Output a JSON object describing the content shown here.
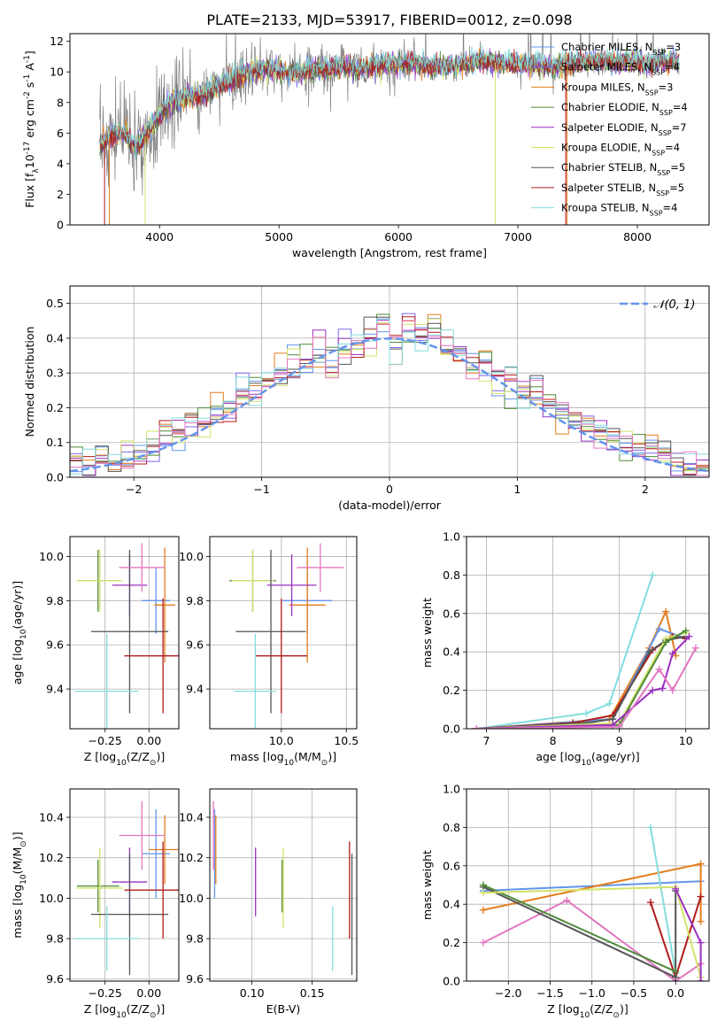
{
  "figure": {
    "title": "PLATE=2133, MJD=53917, FIBERID=0012, z=0.098"
  },
  "colors": {
    "Chabrier MILES": "#6495ed",
    "Salpeter MILES": "#7b68ee",
    "Kroupa MILES": "#e37c1b",
    "Chabrier ELODIE": "#4f8a3a",
    "Salpeter ELODIE": "#9b30c0",
    "Kroupa ELODIE": "#d4e36a",
    "Chabrier STELIB": "#555555",
    "Salpeter STELIB": "#b01b1b",
    "Kroupa STELIB": "#84dcdc",
    "pink": "#e377c2",
    "data": "#808080"
  },
  "chart_data": [
    {
      "type": "line",
      "xlabel": "wavelength [Angstrom, rest frame]",
      "ylabel": "Flux [f$_\\lambda$10$^{-17}$ erg cm$^{-2}$ s$^{-1}$ A$^{-1}$]",
      "xlim": [
        3250,
        8600
      ],
      "ylim": [
        0,
        12.5
      ],
      "xticks": [
        "4000",
        "5000",
        "6000",
        "7000",
        "8000"
      ],
      "yticks": [
        "0",
        "2",
        "4",
        "6",
        "8",
        "10",
        "12"
      ],
      "legend": "top-right",
      "series": [
        {
          "name": "Chabrier MILES, N_SSP=3"
        },
        {
          "name": "Salpeter MILES, N_SSP=4"
        },
        {
          "name": "Kroupa MILES, N_SSP=3"
        },
        {
          "name": "Chabrier ELODIE, N_SSP=4"
        },
        {
          "name": "Salpeter ELODIE, N_SSP=7"
        },
        {
          "name": "Kroupa ELODIE, N_SSP=4"
        },
        {
          "name": "Chabrier STELIB, N_SSP=5"
        },
        {
          "name": "Salpeter STELIB, N_SSP=5"
        },
        {
          "name": "Kroupa STELIB, N_SSP=4"
        }
      ],
      "continuum": {
        "x": [
          3500,
          3600,
          3700,
          3800,
          3900,
          4000,
          4100,
          4200,
          4300,
          4500,
          4700,
          4900,
          5100,
          5300,
          5500,
          5700,
          5900,
          6100,
          6300,
          6500,
          6700,
          6900,
          7100,
          7300,
          7500,
          7700,
          7900,
          8100,
          8300
        ],
        "y": [
          5.2,
          5.8,
          6.0,
          5.0,
          6.0,
          7.2,
          8.0,
          8.3,
          8.4,
          9.0,
          9.8,
          10.2,
          9.9,
          10.1,
          10.3,
          10.2,
          10.5,
          10.5,
          10.3,
          10.4,
          10.7,
          10.5,
          10.5,
          10.3,
          10.6,
          10.6,
          10.7,
          10.5,
          10.7
        ]
      }
    },
    {
      "type": "bar",
      "xlabel": "(data-model)/error",
      "ylabel": "Normed distribution",
      "xlim": [
        -2.5,
        2.5
      ],
      "ylim": [
        0,
        0.55
      ],
      "xticks": [
        "−2",
        "−1",
        "0",
        "1",
        "2"
      ],
      "yticks": [
        "0.0",
        "0.1",
        "0.2",
        "0.3",
        "0.4",
        "0.5"
      ],
      "legend": "top-right",
      "bins": 50,
      "series": [
        {
          "name": "𝒩(0, 1)",
          "mean": 0,
          "sigma": 1
        },
        {
          "values": [
            0.03,
            0.05,
            0.06,
            0.05,
            0.06,
            0.07,
            0.09,
            0.12,
            0.13,
            0.15,
            0.16,
            0.19,
            0.2,
            0.23,
            0.25,
            0.27,
            0.3,
            0.31,
            0.32,
            0.35,
            0.33,
            0.36,
            0.38,
            0.4,
            0.45,
            0.38,
            0.44,
            0.4,
            0.43,
            0.37,
            0.36,
            0.33,
            0.32,
            0.29,
            0.27,
            0.25,
            0.26,
            0.22,
            0.19,
            0.17,
            0.15,
            0.12,
            0.11,
            0.09,
            0.08,
            0.07,
            0.06,
            0.04,
            0.04,
            0.03
          ]
        }
      ]
    },
    {
      "type": "scatter",
      "xlabel": "Z [log$_{10}$(Z/Z$_\\odot$)]",
      "ylabel": "age  [log$_{10}$($age/yr$)]",
      "xlim": [
        -0.45,
        0.17
      ],
      "ylim": [
        9.22,
        10.09
      ],
      "xticks": [
        "−0.25",
        "0.00"
      ],
      "yticks": [
        "9.4",
        "9.6",
        "9.8",
        "10.0"
      ],
      "points": [
        {
          "c": "Chabrier MILES",
          "x": 0.04,
          "y": 9.8,
          "xerr": 0.08,
          "yerr": 0.15
        },
        {
          "c": "Kroupa MILES",
          "x": 0.09,
          "y": 9.78,
          "xerr": 0.06,
          "yerr": 0.26
        },
        {
          "c": "Chabrier ELODIE",
          "x": -0.29,
          "y": 9.89,
          "xerr": 0.12,
          "yerr": 0.14
        },
        {
          "c": "Kroupa ELODIE",
          "x": -0.28,
          "y": 9.89,
          "xerr": 0.13,
          "yerr": 0.14
        },
        {
          "c": "Salpeter ELODIE",
          "x": -0.11,
          "y": 9.87,
          "xerr": 0.1,
          "yerr": 0.14
        },
        {
          "c": "Chabrier STELIB",
          "x": -0.11,
          "y": 9.66,
          "xerr": 0.22,
          "yerr": 0.37
        },
        {
          "c": "Salpeter STELIB",
          "x": 0.08,
          "y": 9.55,
          "xerr": 0.22,
          "yerr": 0.26
        },
        {
          "c": "Kroupa STELIB",
          "x": -0.24,
          "y": 9.39,
          "xerr": 0.18,
          "yerr": 0.26
        },
        {
          "c": "pink",
          "x": -0.04,
          "y": 9.95,
          "xerr": 0.13,
          "yerr": 0.11
        }
      ]
    },
    {
      "type": "scatter",
      "xlabel": "mass [log$_{10}$($M/M_\\odot$)]",
      "ylabel": "",
      "xlim": [
        9.45,
        10.58
      ],
      "ylim": [
        9.22,
        10.09
      ],
      "xticks": [
        "10.0",
        "10.5"
      ],
      "yticks": [
        "9.4",
        "9.6",
        "9.8",
        "10.0"
      ],
      "points": [
        {
          "c": "Chabrier MILES",
          "x": 10.2,
          "y": 9.8,
          "xerr": 0.19,
          "yerr": 0.15
        },
        {
          "c": "Kroupa MILES",
          "x": 10.2,
          "y": 9.78,
          "xerr": 0.14,
          "yerr": 0.26
        },
        {
          "c": "Chabrier ELODIE",
          "x": 9.78,
          "y": 9.89,
          "xerr": 0.18,
          "yerr": 0.14
        },
        {
          "c": "Kroupa ELODIE",
          "x": 9.78,
          "y": 9.89,
          "xerr": 0.16,
          "yerr": 0.14
        },
        {
          "c": "Salpeter ELODIE",
          "x": 10.08,
          "y": 9.87,
          "xerr": 0.19,
          "yerr": 0.14
        },
        {
          "c": "Chabrier STELIB",
          "x": 9.92,
          "y": 9.66,
          "xerr": 0.27,
          "yerr": 0.37
        },
        {
          "c": "Salpeter STELIB",
          "x": 10.0,
          "y": 9.55,
          "xerr": 0.2,
          "yerr": 0.26
        },
        {
          "c": "Kroupa STELIB",
          "x": 9.8,
          "y": 9.39,
          "xerr": 0.16,
          "yerr": 0.26
        },
        {
          "c": "pink",
          "x": 10.3,
          "y": 9.95,
          "xerr": 0.18,
          "yerr": 0.11
        }
      ]
    },
    {
      "type": "line",
      "xlabel": "age  [log$_{10}$($age/yr$)]",
      "ylabel": "mass weight",
      "xlim": [
        6.7,
        10.35
      ],
      "ylim": [
        0,
        1.0
      ],
      "xticks": [
        "7",
        "8",
        "9",
        "10"
      ],
      "yticks": [
        "0.0",
        "0.2",
        "0.4",
        "0.6",
        "0.8",
        "1.0"
      ],
      "series": [
        {
          "c": "Kroupa STELIB",
          "x": [
            6.85,
            8.5,
            8.85,
            9.5
          ],
          "y": [
            0.0,
            0.08,
            0.13,
            0.8
          ]
        },
        {
          "c": "Kroupa MILES",
          "x": [
            6.85,
            8.85,
            9.45,
            9.7,
            9.85
          ],
          "y": [
            0.0,
            0.05,
            0.42,
            0.61,
            0.38
          ]
        },
        {
          "c": "Chabrier MILES",
          "x": [
            6.85,
            8.9,
            9.6,
            10.0
          ],
          "y": [
            0.0,
            0.05,
            0.52,
            0.47
          ]
        },
        {
          "c": "Salpeter STELIB",
          "x": [
            6.85,
            8.3,
            8.9,
            9.5,
            9.8,
            10.0
          ],
          "y": [
            0.0,
            0.03,
            0.07,
            0.41,
            0.48,
            0.47
          ]
        },
        {
          "c": "Chabrier STELIB",
          "x": [
            6.85,
            8.5,
            8.9,
            9.45,
            9.7,
            10.0
          ],
          "y": [
            0.0,
            0.03,
            0.05,
            0.4,
            0.46,
            0.48
          ]
        },
        {
          "c": "Kroupa ELODIE",
          "x": [
            6.85,
            9.0,
            9.7,
            10.0
          ],
          "y": [
            0.0,
            0.03,
            0.47,
            0.5
          ]
        },
        {
          "c": "Chabrier ELODIE",
          "x": [
            6.85,
            9.0,
            9.7,
            10.0
          ],
          "y": [
            0.0,
            0.02,
            0.45,
            0.51
          ]
        },
        {
          "c": "Salpeter ELODIE",
          "x": [
            6.85,
            8.9,
            9.5,
            9.65,
            9.8,
            10.05
          ],
          "y": [
            0.0,
            0.02,
            0.2,
            0.21,
            0.39,
            0.48
          ]
        },
        {
          "c": "pink",
          "x": [
            6.85,
            9.0,
            9.6,
            9.8,
            10.15
          ],
          "y": [
            0.0,
            0.01,
            0.31,
            0.2,
            0.42
          ]
        }
      ]
    },
    {
      "type": "scatter",
      "xlabel": "Z [log$_{10}$(Z/Z$_\\odot$)]",
      "ylabel": "mass [log$_{10}$($M/M_\\odot$)]",
      "xlim": [
        -0.45,
        0.17
      ],
      "ylim": [
        9.59,
        10.54
      ],
      "xticks": [
        "−0.25",
        "0.00"
      ],
      "yticks": [
        "9.6",
        "9.8",
        "10.0",
        "10.2",
        "10.4"
      ],
      "points": [
        {
          "c": "Chabrier MILES",
          "x": 0.04,
          "y": 10.22,
          "xerr": 0.08,
          "yerr": 0.22
        },
        {
          "c": "Kroupa MILES",
          "x": 0.09,
          "y": 10.24,
          "xerr": 0.09,
          "yerr": 0.17
        },
        {
          "c": "Chabrier ELODIE",
          "x": -0.29,
          "y": 10.06,
          "xerr": 0.12,
          "yerr": 0.13
        },
        {
          "c": "Kroupa ELODIE",
          "x": -0.28,
          "y": 10.05,
          "xerr": 0.13,
          "yerr": 0.2
        },
        {
          "c": "Salpeter ELODIE",
          "x": -0.11,
          "y": 10.08,
          "xerr": 0.1,
          "yerr": 0.17
        },
        {
          "c": "Chabrier STELIB",
          "x": -0.11,
          "y": 9.92,
          "xerr": 0.22,
          "yerr": 0.3
        },
        {
          "c": "Salpeter STELIB",
          "x": 0.08,
          "y": 10.04,
          "xerr": 0.22,
          "yerr": 0.24
        },
        {
          "c": "Kroupa STELIB",
          "x": -0.24,
          "y": 9.8,
          "xerr": 0.18,
          "yerr": 0.16
        },
        {
          "c": "pink",
          "x": -0.04,
          "y": 10.31,
          "xerr": 0.13,
          "yerr": 0.17
        }
      ]
    },
    {
      "type": "scatter",
      "xlabel": "E(B-V)",
      "ylabel": "",
      "xlim": [
        0.065,
        0.187
      ],
      "ylim": [
        9.59,
        10.54
      ],
      "xticks": [
        "0.10",
        "0.15"
      ],
      "yticks": [
        "9.6",
        "9.8",
        "10.0",
        "10.2",
        "10.4"
      ],
      "points": [
        {
          "c": "Chabrier MILES",
          "x": 0.069,
          "y": 10.22,
          "xerr": 0,
          "yerr": 0.22
        },
        {
          "c": "Kroupa MILES",
          "x": 0.07,
          "y": 10.24,
          "xerr": 0,
          "yerr": 0.17
        },
        {
          "c": "pink",
          "x": 0.068,
          "y": 10.31,
          "xerr": 0,
          "yerr": 0.17
        },
        {
          "c": "Salpeter ELODIE",
          "x": 0.103,
          "y": 10.08,
          "xerr": 0,
          "yerr": 0.17
        },
        {
          "c": "Chabrier ELODIE",
          "x": 0.125,
          "y": 10.06,
          "xerr": 0,
          "yerr": 0.13
        },
        {
          "c": "Kroupa ELODIE",
          "x": 0.126,
          "y": 10.05,
          "xerr": 0,
          "yerr": 0.2
        },
        {
          "c": "Kroupa STELIB",
          "x": 0.167,
          "y": 9.8,
          "xerr": 0,
          "yerr": 0.16
        },
        {
          "c": "Salpeter STELIB",
          "x": 0.181,
          "y": 10.04,
          "xerr": 0,
          "yerr": 0.24
        },
        {
          "c": "Chabrier STELIB",
          "x": 0.183,
          "y": 9.92,
          "xerr": 0,
          "yerr": 0.3
        }
      ]
    },
    {
      "type": "line",
      "xlabel": "Z [log$_{10}$(Z/Z$_\\odot$)]",
      "ylabel": "mass weight",
      "xlim": [
        -2.5,
        0.4
      ],
      "ylim": [
        0,
        1.0
      ],
      "xticks": [
        "−2.0",
        "−1.5",
        "−1.0",
        "−0.5",
        "0.0"
      ],
      "yticks": [
        "0.0",
        "0.2",
        "0.4",
        "0.6",
        "0.8",
        "1.0"
      ],
      "series": [
        {
          "c": "Chabrier MILES",
          "x": [
            -2.3,
            0.3
          ],
          "y": [
            0.47,
            0.52
          ]
        },
        {
          "c": "Kroupa MILES",
          "x": [
            -2.3,
            0.3,
            0.3
          ],
          "y": [
            0.37,
            0.61,
            0.31
          ]
        },
        {
          "c": "pink",
          "x": [
            -2.3,
            -1.3,
            0.0,
            0.3
          ],
          "y": [
            0.2,
            0.42,
            0.0,
            0.09
          ]
        },
        {
          "c": "Kroupa STELIB",
          "x": [
            -0.3,
            0.0
          ],
          "y": [
            0.8,
            0.04
          ]
        },
        {
          "c": "Salpeter STELIB",
          "x": [
            -0.3,
            0.0,
            0.3
          ],
          "y": [
            0.41,
            0.02,
            0.44
          ]
        },
        {
          "c": "Chabrier STELIB",
          "x": [
            -2.3,
            0.0,
            0.0
          ],
          "y": [
            0.49,
            0.02,
            0.47
          ]
        },
        {
          "c": "Chabrier ELODIE",
          "x": [
            -2.3,
            0.0
          ],
          "y": [
            0.5,
            0.05
          ]
        },
        {
          "c": "Kroupa ELODIE",
          "x": [
            -2.3,
            0.0,
            0.3
          ],
          "y": [
            0.46,
            0.49,
            0.02
          ]
        },
        {
          "c": "Salpeter ELODIE",
          "x": [
            0.0,
            0.3,
            0.3
          ],
          "y": [
            0.48,
            0.2,
            0.0
          ]
        }
      ]
    }
  ]
}
